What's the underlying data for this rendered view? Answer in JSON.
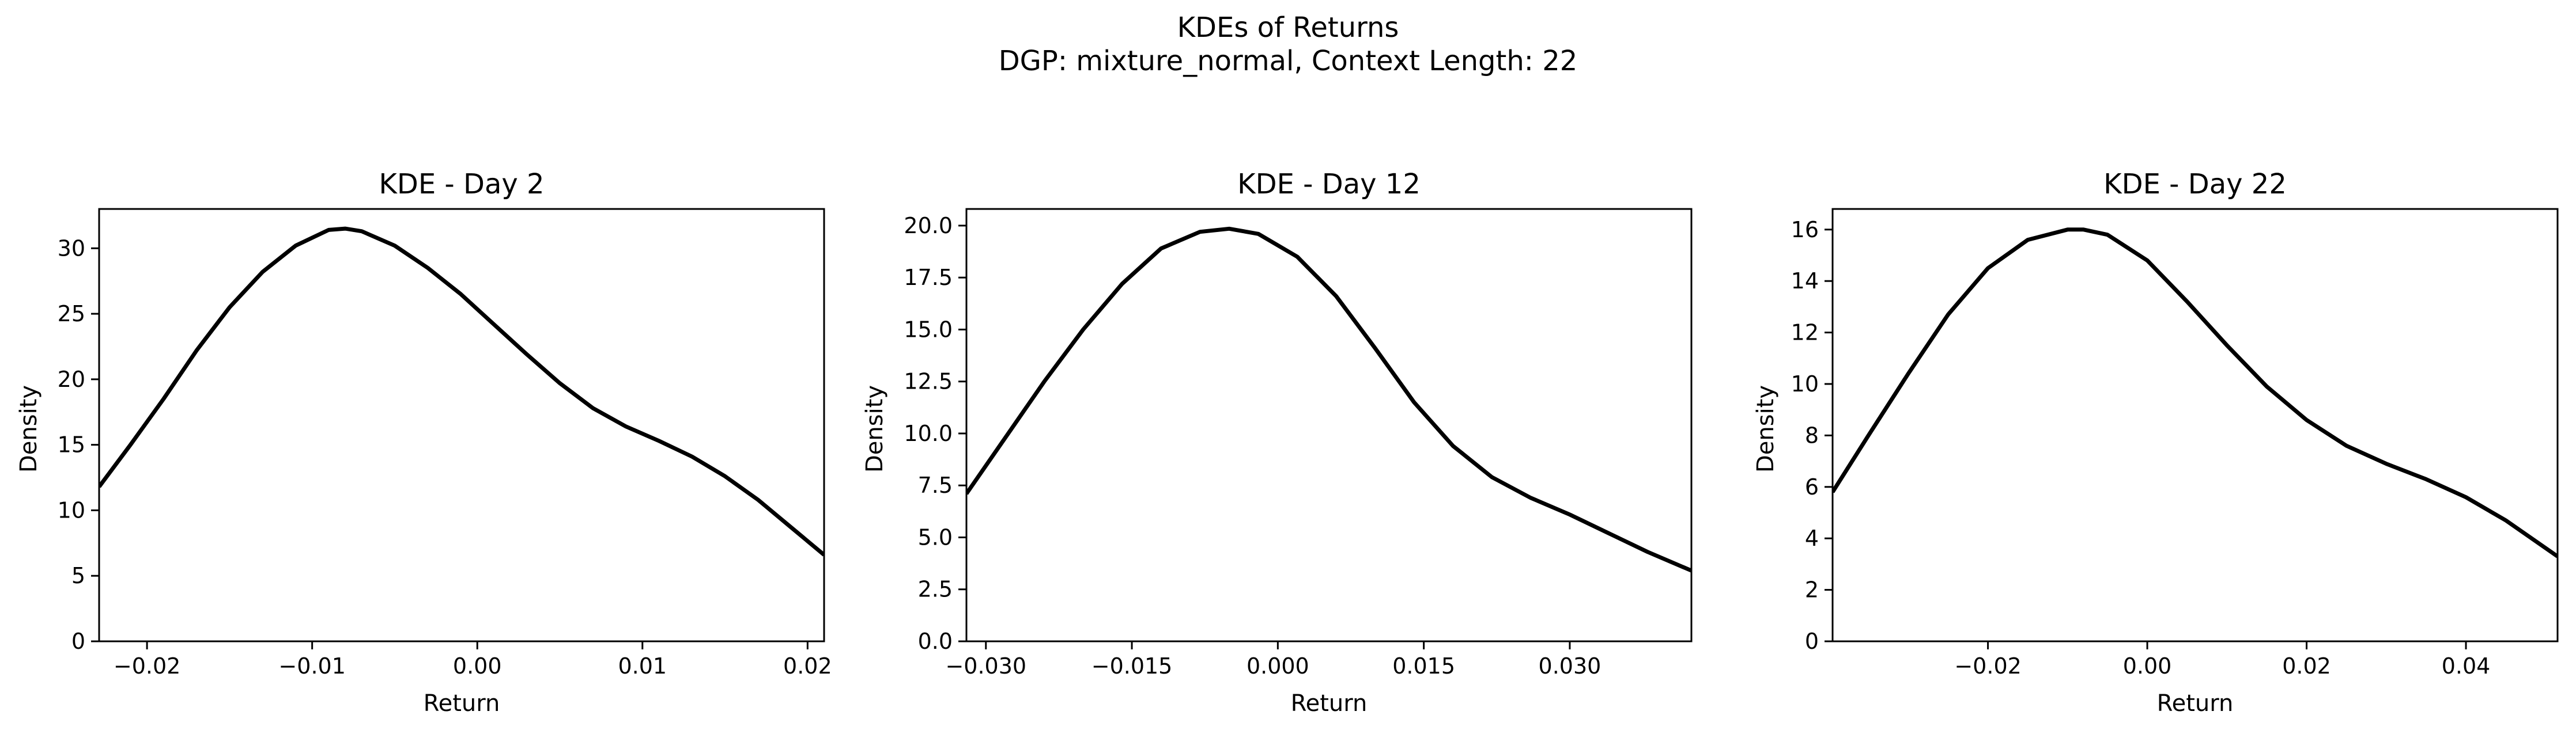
{
  "figure": {
    "title": "KDEs of Returns",
    "subtitle": "DGP: mixture_normal, Context Length: 22"
  },
  "colors": {
    "line": "#000000",
    "background": "#ffffff"
  },
  "chart_data": [
    {
      "type": "line",
      "title": "KDE - Day 2",
      "xlabel": "Return",
      "ylabel": "Density",
      "xlim": [
        -0.0229,
        0.021
      ],
      "ylim": [
        0,
        33
      ],
      "xticks": [
        -0.02,
        -0.01,
        0.0,
        0.01,
        0.02
      ],
      "xtick_labels": [
        "−0.02",
        "−0.01",
        "0.00",
        "0.01",
        "0.02"
      ],
      "yticks": [
        0,
        5,
        10,
        15,
        20,
        25,
        30
      ],
      "ytick_labels": [
        "0",
        "5",
        "10",
        "15",
        "20",
        "25",
        "30"
      ],
      "grid": false,
      "series": [
        {
          "x": [
            -0.0229,
            -0.021,
            -0.019,
            -0.017,
            -0.015,
            -0.013,
            -0.011,
            -0.009,
            -0.008,
            -0.007,
            -0.005,
            -0.003,
            -0.001,
            0.001,
            0.003,
            0.005,
            0.007,
            0.009,
            0.011,
            0.013,
            0.015,
            0.017,
            0.019,
            0.021
          ],
          "y": [
            11.8,
            15.0,
            18.5,
            22.2,
            25.5,
            28.2,
            30.2,
            31.4,
            31.5,
            31.3,
            30.2,
            28.5,
            26.5,
            24.2,
            21.9,
            19.7,
            17.8,
            16.4,
            15.3,
            14.1,
            12.6,
            10.8,
            8.7,
            6.6
          ]
        }
      ]
    },
    {
      "type": "line",
      "title": "KDE - Day 12",
      "xlabel": "Return",
      "ylabel": "Density",
      "xlim": [
        -0.032,
        0.0425
      ],
      "ylim": [
        0,
        20.8
      ],
      "xticks": [
        -0.03,
        -0.015,
        0.0,
        0.015,
        0.03
      ],
      "xtick_labels": [
        "−0.030",
        "−0.015",
        "0.000",
        "0.015",
        "0.030"
      ],
      "yticks": [
        0,
        2.5,
        5,
        7.5,
        10,
        12.5,
        15,
        17.5,
        20
      ],
      "ytick_labels": [
        "0.0",
        "2.5",
        "5.0",
        "7.5",
        "10.0",
        "12.5",
        "15.0",
        "17.5",
        "20.0"
      ],
      "grid": false,
      "series": [
        {
          "x": [
            -0.032,
            -0.028,
            -0.024,
            -0.02,
            -0.016,
            -0.012,
            -0.008,
            -0.005,
            -0.002,
            0.002,
            0.006,
            0.01,
            0.014,
            0.018,
            0.022,
            0.026,
            0.03,
            0.034,
            0.038,
            0.0425
          ],
          "y": [
            7.1,
            9.8,
            12.5,
            15.0,
            17.2,
            18.9,
            19.7,
            19.85,
            19.6,
            18.5,
            16.6,
            14.1,
            11.5,
            9.4,
            7.9,
            6.9,
            6.1,
            5.2,
            4.3,
            3.4
          ]
        }
      ]
    },
    {
      "type": "line",
      "title": "KDE - Day 22",
      "xlabel": "Return",
      "ylabel": "Density",
      "xlim": [
        -0.0395,
        0.0515
      ],
      "ylim": [
        0,
        16.8
      ],
      "xticks": [
        -0.02,
        0.0,
        0.02,
        0.04
      ],
      "xtick_labels": [
        "−0.02",
        "0.00",
        "0.02",
        "0.04"
      ],
      "yticks": [
        0,
        2,
        4,
        6,
        8,
        10,
        12,
        14,
        16
      ],
      "ytick_labels": [
        "0",
        "2",
        "4",
        "6",
        "8",
        "10",
        "12",
        "14",
        "16"
      ],
      "grid": false,
      "series": [
        {
          "x": [
            -0.0395,
            -0.035,
            -0.03,
            -0.025,
            -0.02,
            -0.015,
            -0.01,
            -0.008,
            -0.005,
            0.0,
            0.005,
            0.01,
            0.015,
            0.02,
            0.025,
            0.03,
            0.035,
            0.04,
            0.045,
            0.0515
          ],
          "y": [
            5.8,
            8.0,
            10.4,
            12.7,
            14.5,
            15.6,
            16.0,
            16.0,
            15.8,
            14.8,
            13.2,
            11.5,
            9.9,
            8.6,
            7.6,
            6.9,
            6.3,
            5.6,
            4.7,
            3.3
          ]
        }
      ]
    }
  ]
}
